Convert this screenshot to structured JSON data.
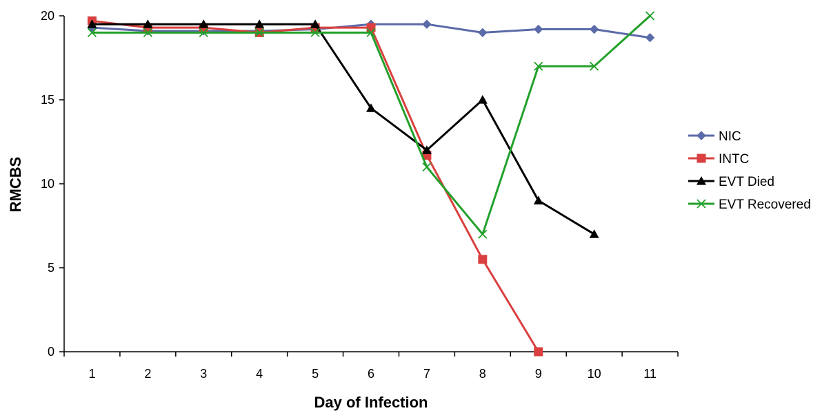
{
  "chart_data": {
    "type": "line",
    "title": "",
    "xlabel": "Day of Infection",
    "ylabel": "RMCBS",
    "x": [
      1,
      2,
      3,
      4,
      5,
      6,
      7,
      8,
      9,
      10,
      11
    ],
    "xlim": [
      0.5,
      11.5
    ],
    "ylim": [
      0,
      20
    ],
    "yticks": [
      0,
      5,
      10,
      15,
      20
    ],
    "grid": false,
    "legend_position": "right",
    "series": [
      {
        "name": "NIC",
        "color": "#5B6AA8",
        "marker": "diamond",
        "values": [
          19.3,
          19.1,
          19.1,
          19.1,
          19.2,
          19.5,
          19.5,
          19.0,
          19.2,
          19.2,
          18.7
        ]
      },
      {
        "name": "INTC",
        "color": "#D9403F",
        "marker": "square",
        "values": [
          19.7,
          19.3,
          19.3,
          19.0,
          19.3,
          19.3,
          11.7,
          5.5,
          0,
          null,
          null
        ]
      },
      {
        "name": "EVT Died",
        "color": "#000000",
        "marker": "triangle",
        "values": [
          19.5,
          19.5,
          19.5,
          19.5,
          19.5,
          14.5,
          12.0,
          15.0,
          9.0,
          7.0,
          null
        ]
      },
      {
        "name": "EVT Recovered",
        "color": "#22A02A",
        "marker": "x",
        "values": [
          19.0,
          19.0,
          19.0,
          19.0,
          19.0,
          19.0,
          11.0,
          7.0,
          17.0,
          17.0,
          20.0
        ]
      }
    ]
  }
}
